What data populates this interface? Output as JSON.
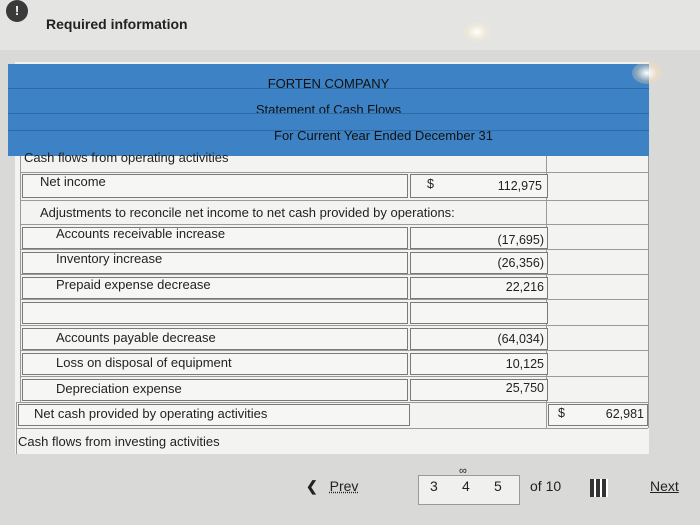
{
  "header": {
    "required_label": "Required information"
  },
  "statement": {
    "company": "FORTEN COMPANY",
    "title": "Statement of Cash Flows",
    "period": "For Current Year Ended December 31",
    "operating_heading": "Cash flows from operating activities",
    "net_income_label": "Net income",
    "net_income_currency": "$",
    "net_income_value": "112,975",
    "adjustments_label": "Adjustments to reconcile net income to net cash provided by operations:",
    "adjustments": [
      {
        "label": "Accounts receivable increase",
        "value": "(17,695)"
      },
      {
        "label": "Inventory increase",
        "value": "(26,356)"
      },
      {
        "label": "Prepaid expense decrease",
        "value": "22,216"
      },
      {
        "label": "",
        "value": ""
      },
      {
        "label": "Accounts payable decrease",
        "value": "(64,034)"
      },
      {
        "label": "Loss on disposal of equipment",
        "value": "10,125"
      },
      {
        "label": "Depreciation expense",
        "value": "25,750"
      }
    ],
    "net_cash_label": "Net cash provided by operating activities",
    "net_cash_currency": "$",
    "net_cash_value": "62,981",
    "investing_heading": "Cash flows from investing activities"
  },
  "pagination": {
    "prev_label": "Prev",
    "pages": [
      "3",
      "4",
      "5"
    ],
    "of_label": "of 10",
    "next_label": "Next"
  }
}
